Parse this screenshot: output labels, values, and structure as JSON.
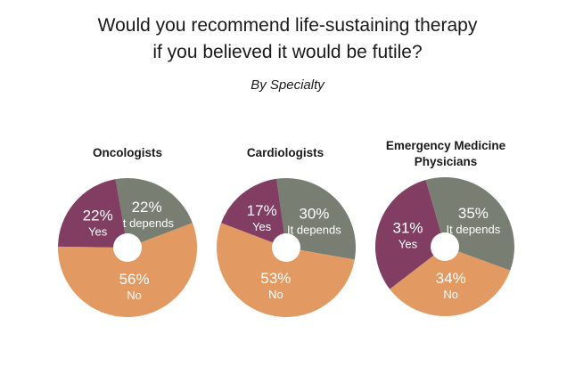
{
  "title_line1": "Would you recommend life-sustaining therapy",
  "title_line2": "if you believed it would be futile?",
  "subtitle": "By Specialty",
  "colors": {
    "it_depends": "#787e72",
    "yes": "#813d62",
    "no": "#e29a62",
    "hole": "#ffffff"
  },
  "chart_data": [
    {
      "type": "pie",
      "title": "Oncologists",
      "title_lines": [
        "Oncologists"
      ],
      "slices": [
        {
          "label": "It depends",
          "value": 22,
          "pct_text": "22%"
        },
        {
          "label": "No",
          "value": 56,
          "pct_text": "56%"
        },
        {
          "label": "Yes",
          "value": 22,
          "pct_text": "22%"
        }
      ]
    },
    {
      "type": "pie",
      "title": "Cardiologists",
      "title_lines": [
        "Cardiologists"
      ],
      "slices": [
        {
          "label": "It depends",
          "value": 30,
          "pct_text": "30%"
        },
        {
          "label": "No",
          "value": 53,
          "pct_text": "53%"
        },
        {
          "label": "Yes",
          "value": 17,
          "pct_text": "17%"
        }
      ]
    },
    {
      "type": "pie",
      "title": "Emergency Medicine Physicians",
      "title_lines": [
        "Emergency Medicine",
        "Physicians"
      ],
      "slices": [
        {
          "label": "It depends",
          "value": 35,
          "pct_text": "35%"
        },
        {
          "label": "No",
          "value": 34,
          "pct_text": "34%"
        },
        {
          "label": "Yes",
          "value": 31,
          "pct_text": "31%"
        }
      ]
    }
  ]
}
